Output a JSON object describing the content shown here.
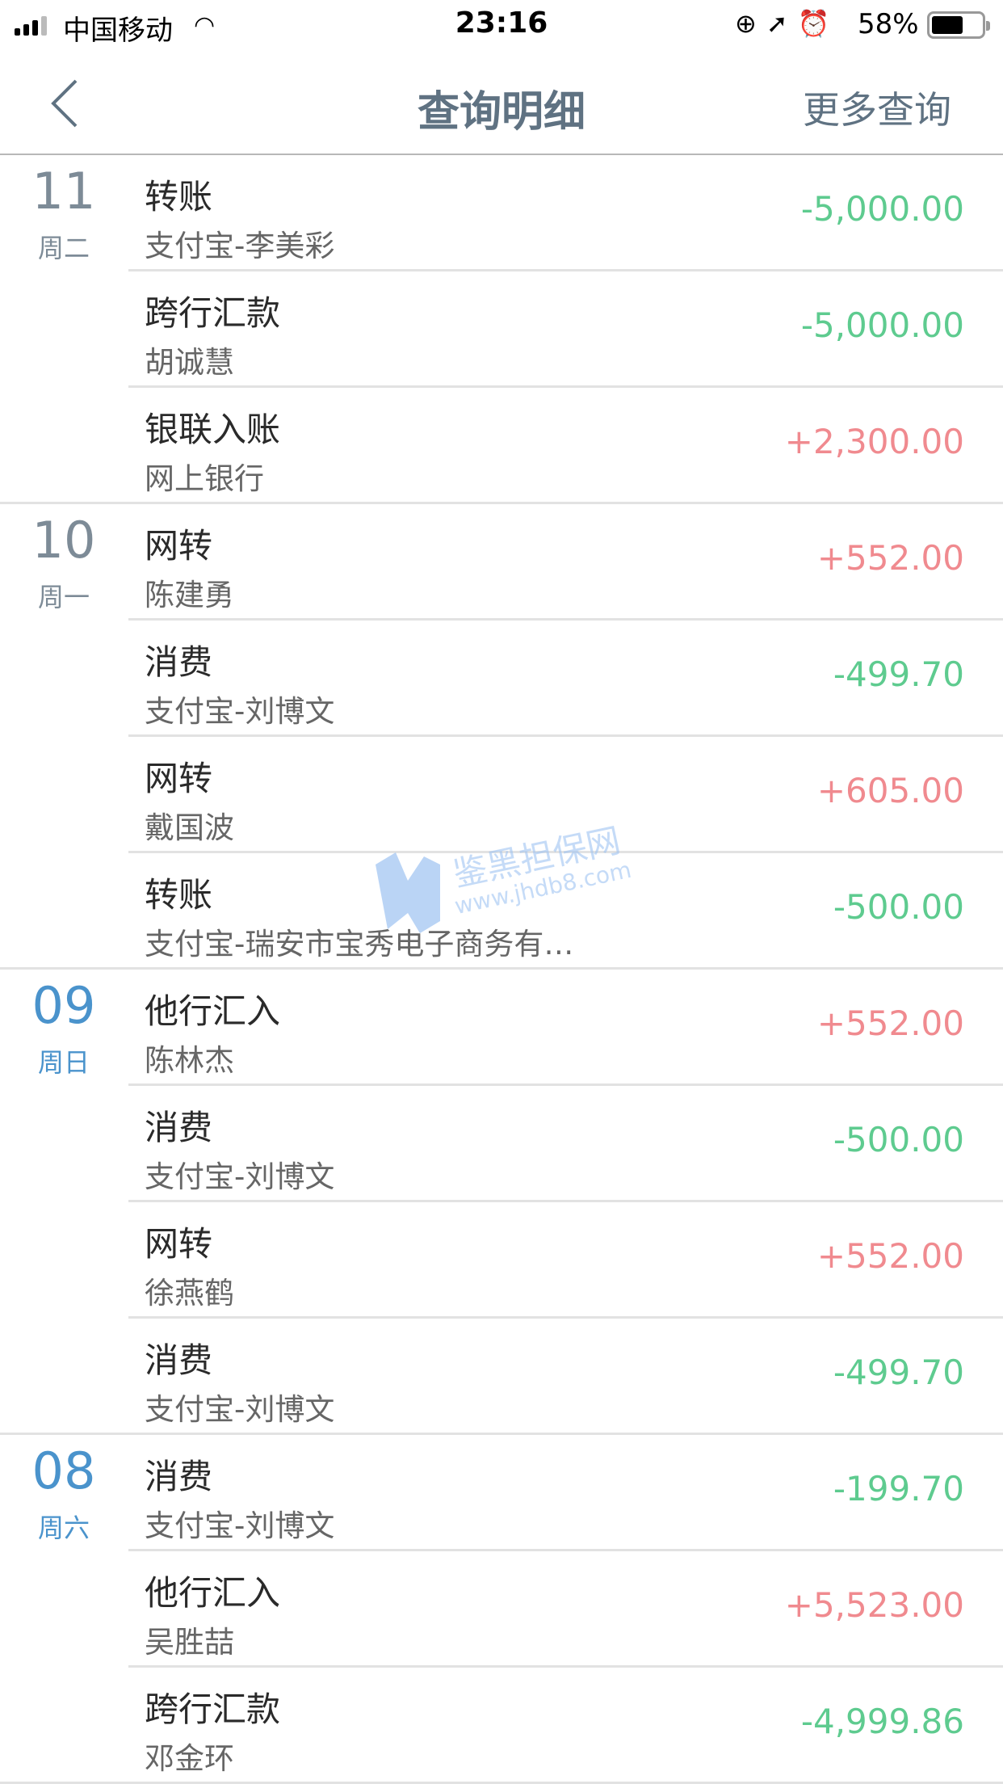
{
  "status_bar": {
    "carrier": "中国移动",
    "time": "23:16",
    "battery": "58%",
    "battery_level": 0.58
  },
  "nav": {
    "title": "查询明细",
    "more": "更多查询",
    "back_icon": "chevron-left-icon"
  },
  "colors": {
    "expense": "#5ecb8f",
    "income": "#f08a8f",
    "date_past": "#7d8b97",
    "date_recent": "#4a93cc"
  },
  "groups": [
    {
      "day": "11",
      "weekday": "周二",
      "color": "gray",
      "items": [
        {
          "title": "转账",
          "sub": "支付宝-李美彩",
          "amount": "-5,000.00"
        },
        {
          "title": "跨行汇款",
          "sub": "胡诚慧",
          "amount": "-5,000.00"
        },
        {
          "title": "银联入账",
          "sub": "网上银行",
          "amount": "+2,300.00"
        }
      ]
    },
    {
      "day": "10",
      "weekday": "周一",
      "color": "gray",
      "items": [
        {
          "title": "网转",
          "sub": "陈建勇",
          "amount": "+552.00"
        },
        {
          "title": "消费",
          "sub": "支付宝-刘博文",
          "amount": "-499.70"
        },
        {
          "title": "网转",
          "sub": "戴国波",
          "amount": "+605.00"
        },
        {
          "title": "转账",
          "sub": "支付宝-瑞安市宝秀电子商务有…",
          "amount": "-500.00"
        }
      ]
    },
    {
      "day": "09",
      "weekday": "周日",
      "color": "blue",
      "items": [
        {
          "title": "他行汇入",
          "sub": "陈林杰",
          "amount": "+552.00"
        },
        {
          "title": "消费",
          "sub": "支付宝-刘博文",
          "amount": "-500.00"
        },
        {
          "title": "网转",
          "sub": "徐燕鹤",
          "amount": "+552.00"
        },
        {
          "title": "消费",
          "sub": "支付宝-刘博文",
          "amount": "-499.70"
        }
      ]
    },
    {
      "day": "08",
      "weekday": "周六",
      "color": "blue",
      "items": [
        {
          "title": "消费",
          "sub": "支付宝-刘博文",
          "amount": "-199.70"
        },
        {
          "title": "他行汇入",
          "sub": "吴胜喆",
          "amount": "+5,523.00"
        },
        {
          "title": "跨行汇款",
          "sub": "邓金环",
          "amount": "-4,999.86"
        }
      ]
    }
  ],
  "watermark": {
    "name": "鉴黑担保网",
    "url": "www.jhdb8.com"
  }
}
